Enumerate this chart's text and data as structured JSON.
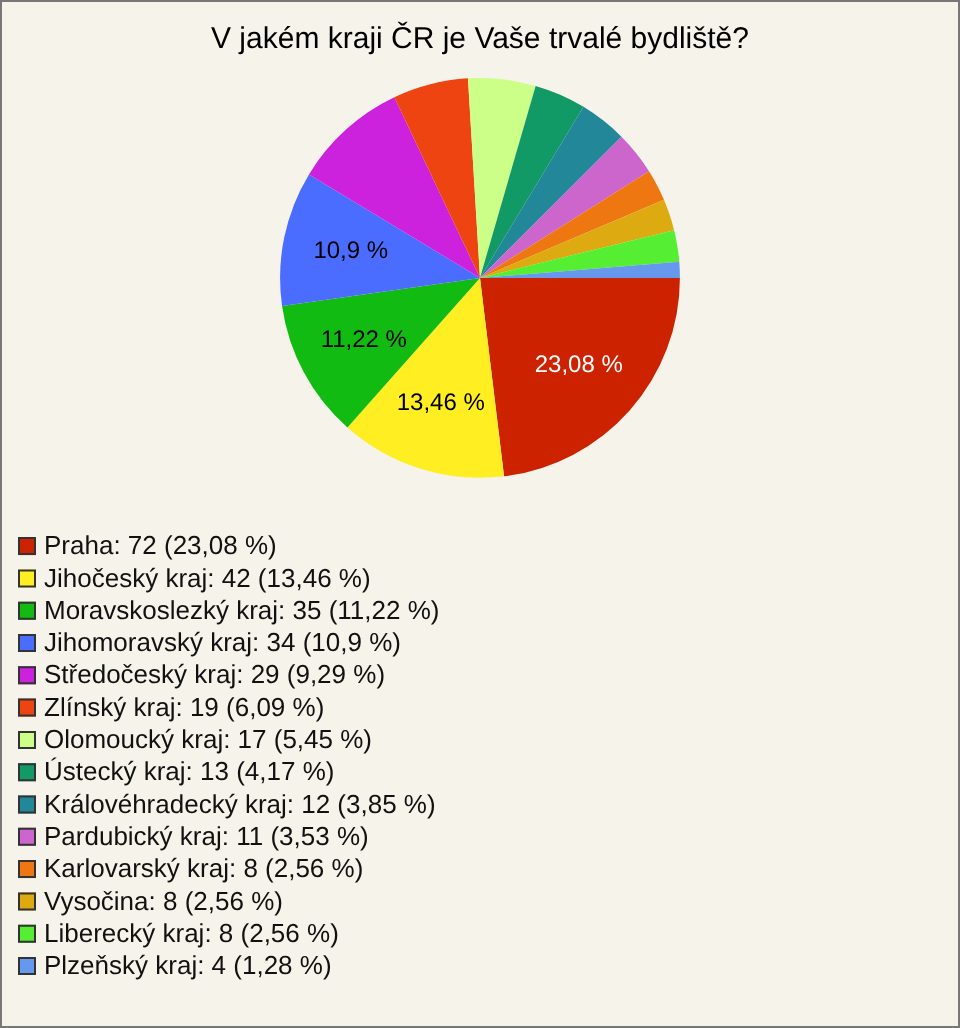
{
  "chart_data": {
    "type": "pie",
    "title": "V jakém kraji ČR je Vaše trvalé bydliště?",
    "categories": [
      "Praha: 72 (23,08 %)",
      "Jihočeský kraj: 42 (13,46 %)",
      "Moravskoslezký kraj: 35 (11,22 %)",
      "Jihomoravský kraj: 34 (10,9 %)",
      "Středočeský kraj: 29 (9,29 %)",
      "Zlínský kraj: 19 (6,09 %)",
      "Olomoucký kraj: 17 (5,45 %)",
      "Ústecký kraj: 13 (4,17 %)",
      "Královéhradecký kraj: 12 (3,85 %)",
      "Pardubický kraj: 11 (3,53 %)",
      "Karlovarský kraj: 8 (2,56 %)",
      "Vysočina: 8 (2,56 %)",
      "Liberecký kraj: 8 (2,56 %)",
      "Plzeňský kraj: 4 (1,28 %)"
    ],
    "values": [
      23.08,
      13.46,
      11.22,
      10.9,
      9.29,
      6.09,
      5.45,
      4.17,
      3.85,
      3.53,
      2.56,
      2.56,
      2.56,
      1.28
    ],
    "colors": [
      "#cc2200",
      "#ffee22",
      "#11bb11",
      "#4a6cff",
      "#cc22dd",
      "#ee4411",
      "#ccff88",
      "#119966",
      "#228899",
      "#cc66cc",
      "#ee7711",
      "#ddaa11",
      "#55ee33",
      "#6699ee"
    ],
    "value_labels": [
      "23,08 %",
      "13,46 %",
      "11,22 %",
      "10,9 %",
      null,
      null,
      null,
      null,
      null,
      null,
      null,
      null,
      null,
      null
    ],
    "legend": "bottom"
  }
}
